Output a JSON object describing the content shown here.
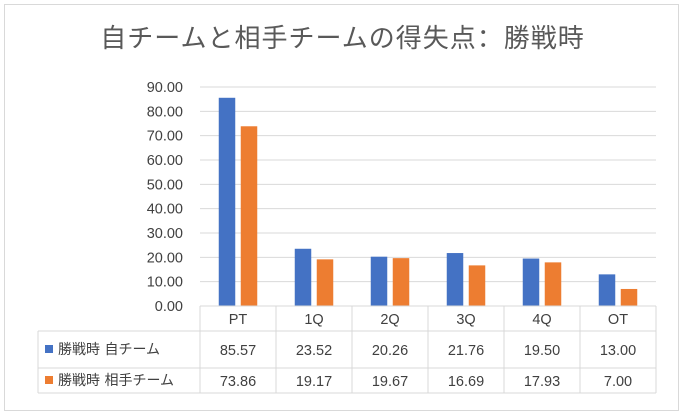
{
  "chart_data": {
    "type": "bar",
    "title": "自チームと相手チームの得失点：勝戦時",
    "categories": [
      "PT",
      "1Q",
      "2Q",
      "3Q",
      "4Q",
      "OT"
    ],
    "series": [
      {
        "name": "勝戦時 自チーム",
        "color": "#4472c4",
        "values": [
          85.57,
          23.52,
          20.26,
          21.76,
          19.5,
          13.0
        ],
        "labels": [
          "85.57",
          "23.52",
          "20.26",
          "21.76",
          "19.50",
          "13.00"
        ]
      },
      {
        "name": "勝戦時 相手チーム",
        "color": "#ed7d31",
        "values": [
          73.86,
          19.17,
          19.67,
          16.69,
          17.93,
          7.0
        ],
        "labels": [
          "73.86",
          "19.17",
          "19.67",
          "16.69",
          "17.93",
          "7.00"
        ]
      }
    ],
    "ylim": [
      0,
      90
    ],
    "yticks": [
      "0.00",
      "10.00",
      "20.00",
      "30.00",
      "40.00",
      "50.00",
      "60.00",
      "70.00",
      "80.00",
      "90.00"
    ],
    "grid": true,
    "legend": "data-table"
  }
}
